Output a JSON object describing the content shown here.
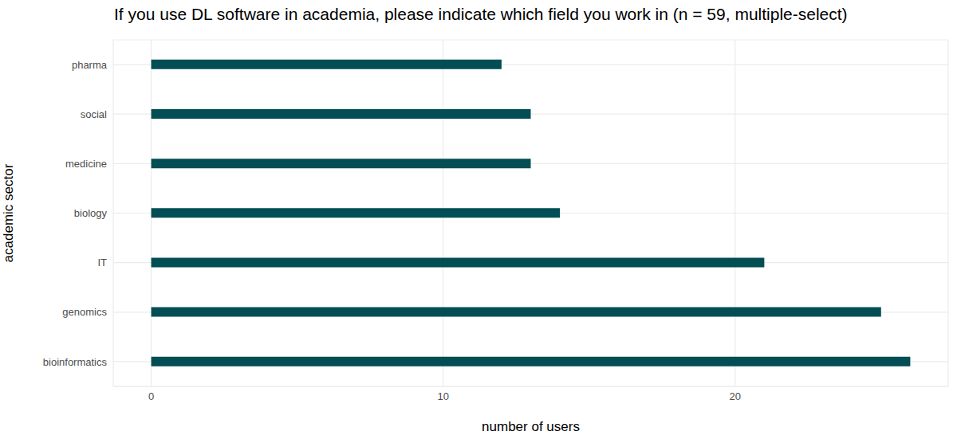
{
  "chart_data": {
    "type": "bar",
    "orientation": "horizontal",
    "title": "If you use DL software in academia, please indicate which field you work in (n = 59, multiple-select)",
    "x_label": "number of users",
    "y_label": "academic sector",
    "categories": [
      "pharma",
      "social",
      "medicine",
      "biology",
      "IT",
      "genomics",
      "bioinformatics"
    ],
    "values": [
      12,
      13,
      13,
      14,
      21,
      25,
      26
    ],
    "color": "#024e54",
    "xlim": [
      -1.3,
      27.3
    ],
    "xticks": [
      0,
      10,
      20
    ],
    "grid": true
  }
}
